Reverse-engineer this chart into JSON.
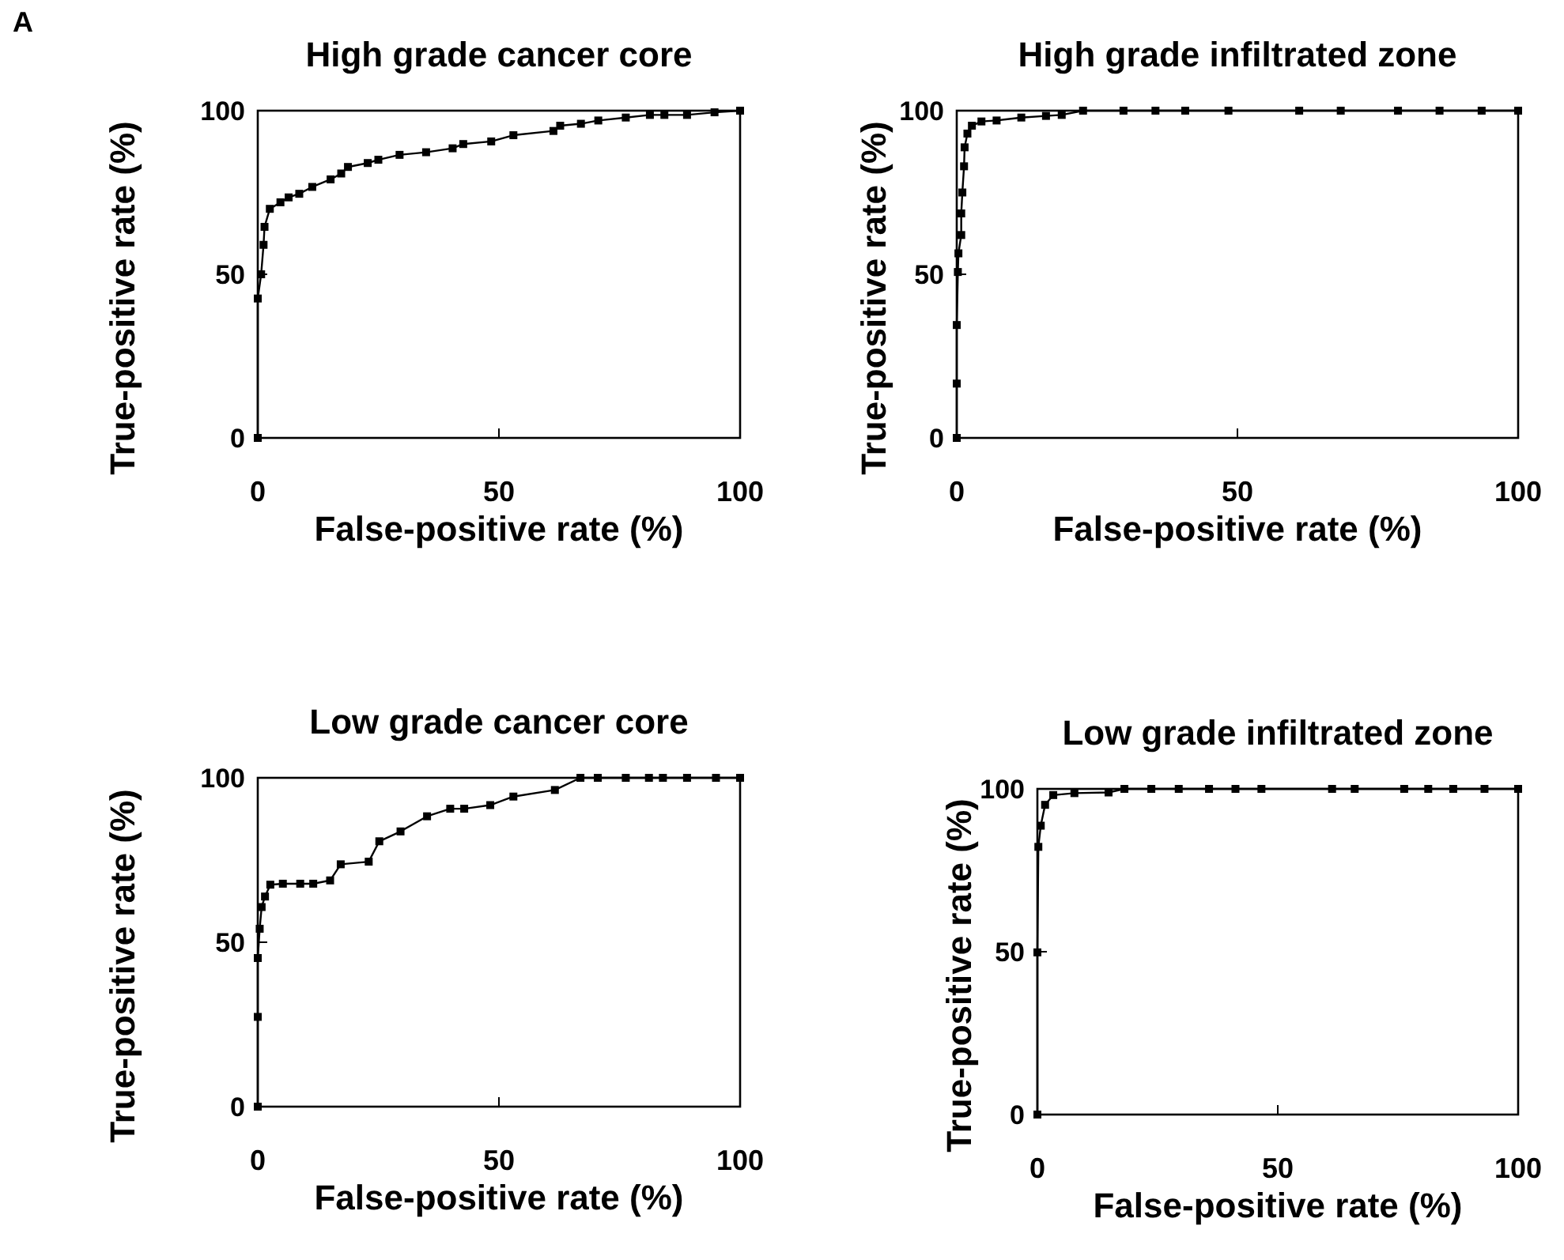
{
  "chart_data": [
    {
      "type": "line",
      "title": "High grade cancer core",
      "xlabel": "False-positive rate (%)",
      "ylabel": "True-positive rate (%)",
      "annotations": [
        "A"
      ],
      "xlim": [
        0,
        100
      ],
      "ylim": [
        0,
        100
      ],
      "xticks": [
        0,
        50,
        100
      ],
      "yticks": [
        0,
        50,
        100
      ],
      "grid": false,
      "marker": "square",
      "line_style": "solid",
      "series": [
        {
          "color": "#000000",
          "x": [
            0,
            0,
            0.7,
            1.2,
            1.4,
            2.5,
            4.7,
            6.4,
            8.6,
            11.3,
            15.1,
            17.3,
            18.7,
            22.8,
            25,
            29.4,
            34.9,
            40.4,
            42.6,
            48.4,
            53,
            61.3,
            62.7,
            67,
            70.6,
            76.3,
            81.3,
            84.3,
            89,
            94.7,
            100
          ],
          "values": [
            0,
            42.6,
            50,
            59,
            64.5,
            70,
            72,
            73.5,
            74.6,
            76.7,
            79,
            80.8,
            82.8,
            84,
            85,
            86.5,
            87.3,
            88.5,
            89.8,
            90.6,
            92.5,
            93.8,
            95.4,
            96,
            97,
            97.9,
            98.7,
            98.7,
            98.7,
            99.5,
            100
          ]
        }
      ]
    },
    {
      "type": "line",
      "title": "High grade infiltrated zone",
      "xlabel": "False-positive rate (%)",
      "ylabel": "True-positive rate (%)",
      "xlim": [
        0,
        100
      ],
      "ylim": [
        0,
        100
      ],
      "xticks": [
        0,
        50,
        100
      ],
      "yticks": [
        0,
        50,
        100
      ],
      "grid": false,
      "marker": "square",
      "line_style": "solid",
      "series": [
        {
          "color": "#000000",
          "x": [
            0,
            0,
            0,
            0.2,
            0.3,
            0.8,
            0.8,
            1,
            1.3,
            1.4,
            1.9,
            2.7,
            4.4,
            7.1,
            11.5,
            15.9,
            18.7,
            22.5,
            29.7,
            35.4,
            40.7,
            48.4,
            61,
            68.4,
            78.6,
            86,
            93.5,
            100
          ],
          "values": [
            0,
            16.6,
            34.5,
            50.7,
            56.4,
            62,
            68.6,
            75,
            83,
            88.8,
            93,
            95.4,
            96.7,
            97,
            97.9,
            98.4,
            98.7,
            100,
            100,
            100,
            100,
            100,
            100,
            100,
            100,
            100,
            100,
            100
          ]
        }
      ]
    },
    {
      "type": "line",
      "title": "Low grade cancer core",
      "xlabel": "False-positive rate (%)",
      "ylabel": "True-positive rate (%)",
      "xlim": [
        0,
        100
      ],
      "ylim": [
        0,
        100
      ],
      "xticks": [
        0,
        50,
        100
      ],
      "yticks": [
        0,
        50,
        100
      ],
      "grid": false,
      "marker": "square",
      "line_style": "solid",
      "series": [
        {
          "color": "#000000",
          "x": [
            0,
            0,
            0,
            0.4,
            0.8,
            1.5,
            2.6,
            5.2,
            8.8,
            11.5,
            15,
            17.2,
            23,
            25.2,
            29.6,
            35.1,
            39.9,
            42.8,
            48.2,
            53,
            61.6,
            66.9,
            70.5,
            76.3,
            81.1,
            84,
            89,
            95,
            100
          ],
          "values": [
            0,
            27.3,
            45.2,
            54.1,
            60.7,
            63.9,
            67.5,
            67.8,
            67.8,
            67.8,
            68.8,
            73.7,
            74.5,
            80.7,
            83.7,
            88.3,
            90.6,
            90.6,
            91.7,
            94.3,
            96.3,
            100,
            100,
            100,
            100,
            100,
            100,
            100,
            100
          ]
        }
      ]
    },
    {
      "type": "line",
      "title": "Low grade infiltrated zone",
      "xlabel": "False-positive rate (%)",
      "ylabel": "True-positive rate (%)",
      "xlim": [
        0,
        100
      ],
      "ylim": [
        0,
        100
      ],
      "xticks": [
        0,
        50,
        100
      ],
      "yticks": [
        0,
        50,
        100
      ],
      "grid": false,
      "marker": "square",
      "line_style": "solid",
      "series": [
        {
          "color": "#000000",
          "x": [
            0,
            0,
            0.2,
            0.7,
            1.6,
            3.3,
            7.7,
            14.8,
            18.1,
            23.7,
            29.4,
            35.7,
            41.2,
            46.6,
            61.3,
            66,
            76.3,
            81.3,
            86.5,
            93,
            100
          ],
          "values": [
            0,
            49.8,
            82.2,
            88.7,
            95.1,
            98.1,
            98.7,
            98.9,
            100,
            100,
            100,
            100,
            100,
            100,
            100,
            100,
            100,
            100,
            100,
            100,
            100
          ]
        }
      ]
    }
  ]
}
